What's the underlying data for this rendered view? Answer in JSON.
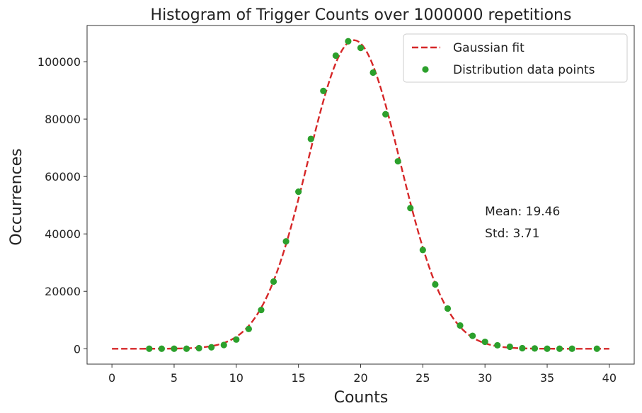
{
  "chart_data": {
    "type": "scatter",
    "title": "Histogram of Trigger Counts over 1000000 repetitions",
    "xlabel": "Counts",
    "ylabel": "Occurrences",
    "xlim": [
      -2,
      42
    ],
    "ylim": [
      -5360,
      112600
    ],
    "xticks": [
      0,
      5,
      10,
      15,
      20,
      25,
      30,
      35,
      40
    ],
    "xtick_labels": [
      "0",
      "5",
      "10",
      "15",
      "20",
      "25",
      "30",
      "35",
      "40"
    ],
    "yticks": [
      0,
      20000,
      40000,
      60000,
      80000,
      100000
    ],
    "ytick_labels": [
      "0",
      "20000",
      "40000",
      "60000",
      "80000",
      "100000"
    ],
    "grid": false,
    "legend_position": "top-right",
    "series": [
      {
        "name": "Gaussian fit",
        "kind": "line",
        "style": "dashed",
        "color": "#d62728",
        "curve": {
          "amplitude": 107500,
          "mean": 19.46,
          "std": 3.71,
          "x_from": 0,
          "x_to": 40
        }
      },
      {
        "name": "Distribution data points",
        "kind": "scatter",
        "color": "#2ca02c",
        "x": [
          3,
          4,
          5,
          6,
          7,
          8,
          9,
          10,
          11,
          12,
          13,
          14,
          15,
          16,
          17,
          18,
          19,
          20,
          21,
          22,
          23,
          24,
          25,
          26,
          27,
          28,
          29,
          30,
          31,
          32,
          33,
          34,
          35,
          36,
          37,
          39
        ],
        "y": [
          0,
          0,
          0,
          0,
          200,
          500,
          1300,
          3200,
          6900,
          13500,
          23400,
          37400,
          54700,
          73100,
          89800,
          102100,
          107100,
          104800,
          96200,
          81700,
          65300,
          49000,
          34400,
          22400,
          14000,
          8100,
          4500,
          2400,
          1200,
          700,
          200,
          100,
          0,
          0,
          0,
          0
        ]
      }
    ],
    "annotations": [
      {
        "text": "Mean: 19.46",
        "x": 30,
        "y": 46500
      },
      {
        "text": "Std: 3.71",
        "x": 30,
        "y": 38800
      }
    ]
  }
}
